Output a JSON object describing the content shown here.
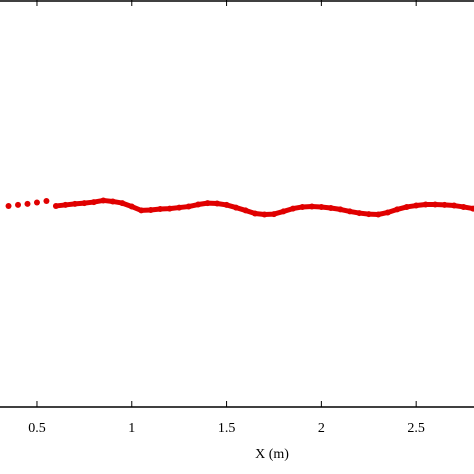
{
  "chart_data": {
    "type": "scatter",
    "xlabel": "X (m)",
    "color": "#e00000",
    "x": [
      0.35,
      0.4,
      0.45,
      0.5,
      0.55,
      0.6,
      0.65,
      0.7,
      0.75,
      0.8,
      0.85,
      0.9,
      0.95,
      1.0,
      1.05,
      1.1,
      1.15,
      1.2,
      1.25,
      1.3,
      1.35,
      1.4,
      1.45,
      1.5,
      1.55,
      1.6,
      1.65,
      1.7,
      1.75,
      1.8,
      1.85,
      1.9,
      1.95,
      2.0,
      2.05,
      2.1,
      2.15,
      2.2,
      2.25,
      2.3,
      2.35,
      2.4,
      2.45,
      2.5,
      2.55,
      2.6,
      2.65,
      2.7,
      2.75,
      2.8
    ],
    "values": [
      -0.012,
      -0.007,
      -0.002,
      0.005,
      0.012,
      -0.012,
      -0.007,
      -0.002,
      0.002,
      0.007,
      0.015,
      0.01,
      0.002,
      -0.015,
      -0.034,
      -0.032,
      -0.027,
      -0.025,
      -0.02,
      -0.015,
      -0.005,
      0.002,
      0,
      -0.007,
      -0.02,
      -0.034,
      -0.049,
      -0.054,
      -0.052,
      -0.039,
      -0.025,
      -0.017,
      -0.015,
      -0.017,
      -0.022,
      -0.029,
      -0.039,
      -0.047,
      -0.052,
      -0.054,
      -0.044,
      -0.029,
      -0.017,
      -0.01,
      -0.005,
      -0.005,
      -0.007,
      -0.01,
      -0.017,
      -0.025
    ],
    "xlim": [
      0.305,
      2.805
    ],
    "xticks": [
      0.5,
      1,
      1.5,
      2,
      2.5
    ],
    "ylim": [
      -1,
      1
    ]
  }
}
